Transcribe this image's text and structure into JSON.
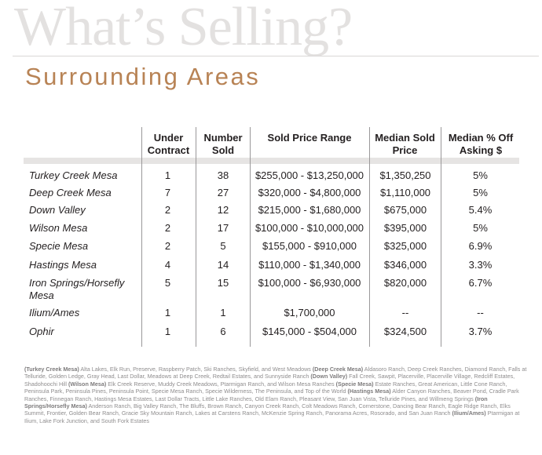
{
  "header": {
    "bg_title": "What’s Selling?",
    "subtitle": "Surrounding Areas"
  },
  "table": {
    "columns": [
      "",
      "Under\nContract",
      "Number\nSold",
      "Sold Price Range",
      "Median Sold\nPrice",
      "Median % Off\nAsking $"
    ],
    "rows": [
      {
        "area": "Turkey Creek Mesa",
        "under_contract": "1",
        "number_sold": "38",
        "price_range": "$255,000 - $13,250,000",
        "median_price": "$1,350,250",
        "median_off": "5%"
      },
      {
        "area": "Deep Creek Mesa",
        "under_contract": "7",
        "number_sold": "27",
        "price_range": "$320,000 - $4,800,000",
        "median_price": "$1,110,000",
        "median_off": "5%"
      },
      {
        "area": "Down Valley",
        "under_contract": "2",
        "number_sold": "12",
        "price_range": "$215,000 - $1,680,000",
        "median_price": "$675,000",
        "median_off": "5.4%"
      },
      {
        "area": "Wilson Mesa",
        "under_contract": "2",
        "number_sold": "17",
        "price_range": "$100,000 - $10,000,000",
        "median_price": "$395,000",
        "median_off": "5%"
      },
      {
        "area": "Specie Mesa",
        "under_contract": "2",
        "number_sold": "5",
        "price_range": "$155,000 - $910,000",
        "median_price": "$325,000",
        "median_off": "6.9%"
      },
      {
        "area": "Hastings Mesa",
        "under_contract": "4",
        "number_sold": "14",
        "price_range": "$110,000 - $1,340,000",
        "median_price": "$346,000",
        "median_off": "3.3%"
      },
      {
        "area": "Iron Springs/Horsefly Mesa",
        "under_contract": "5",
        "number_sold": "15",
        "price_range": "$100,000 - $6,930,000",
        "median_price": "$820,000",
        "median_off": "6.7%"
      },
      {
        "area": "Ilium/Ames",
        "under_contract": "1",
        "number_sold": "1",
        "price_range": "$1,700,000",
        "median_price": "--",
        "median_off": "--"
      },
      {
        "area": "Ophir",
        "under_contract": "1",
        "number_sold": "6",
        "price_range": "$145,000 - $504,000",
        "median_price": "$324,500",
        "median_off": "3.7%"
      }
    ]
  },
  "footnote": [
    {
      "area": "(Turkey Creek Mesa)",
      "text": " Alta Lakes, Elk Run, Preserve, Raspberry Patch, Ski Ranches, Skyfield, and West Meadows "
    },
    {
      "area": "(Deep Creek Mesa)",
      "text": " Aldasoro Ranch, Deep Creek Ranches, Diamond Ranch, Falls at Telluride, Golden Ledge, Gray Head, Last Dollar, Meadows at Deep Creek, Redtail Estates, and Sunnyside Ranch "
    },
    {
      "area": "(Down Valley)",
      "text": " Fall Creek, Sawpit, Placerville, Placerville Village, Redcliff Estates, Shadohoochi Hill "
    },
    {
      "area": "(Wilson Mesa)",
      "text": " Elk Creek Reserve, Muddy Creek Meadows, Ptarmigan Ranch, and Wilson Mesa Ranches "
    },
    {
      "area": "(Specie Mesa)",
      "text": " Estate Ranches, Great American, Little Cone Ranch, Peninsula Park, Peninsula Pines, Peninsula Point, Specie Mesa Ranch, Specie Wilderness, The Peninsula, and Top of the World "
    },
    {
      "area": "(Hastings Mesa)",
      "text": " Alder Canyon Ranches, Beaver Pond, Cradle Park Ranches, Finnegan Ranch, Hastings Mesa Estates, Last Dollar Tracts, Little Lake Ranches, Old Elam Ranch, Pleasant View, San Juan Vista, Telluride Pines, and Willmeng Springs "
    },
    {
      "area": "(Iron Springs/Horsefly Mesa)",
      "text": " Anderson Ranch, Big Valley Ranch, The Bluffs, Brown Ranch, Canyon Creek Ranch, Colt Meadows Ranch, Cornerstone, Dancing Bear Ranch, Eagle Ridge Ranch, Elks Summit, Frontier, Golden Bear Ranch, Gracie Sky Mountain Ranch, Lakes at Carstens Ranch, McKenzie Spring Ranch, Panorama Acres, Rosorado, and San Juan Ranch "
    },
    {
      "area": "(Ilium/Ames)",
      "text": " Ptarmigan at Ilium, Lake Fork Junction, and South Fork Estates"
    }
  ]
}
